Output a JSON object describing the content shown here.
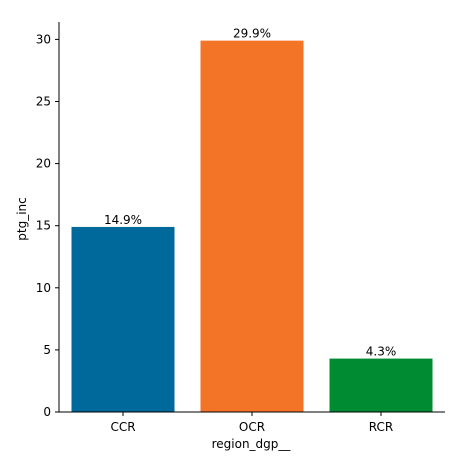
{
  "chart_data": {
    "type": "bar",
    "categories": [
      "CCR",
      "OCR",
      "RCR"
    ],
    "values": [
      14.9,
      29.9,
      4.3
    ],
    "data_labels": [
      "14.9%",
      "29.9%",
      "4.3%"
    ],
    "colors": [
      "#00699b",
      "#f47427",
      "#008a32"
    ],
    "xlabel": "region_dgp__",
    "ylabel": "ptg_inc",
    "ylim": [
      0,
      31.4
    ],
    "yticks": [
      0,
      5,
      10,
      15,
      20,
      25,
      30
    ],
    "grid": false,
    "legend": "none"
  }
}
